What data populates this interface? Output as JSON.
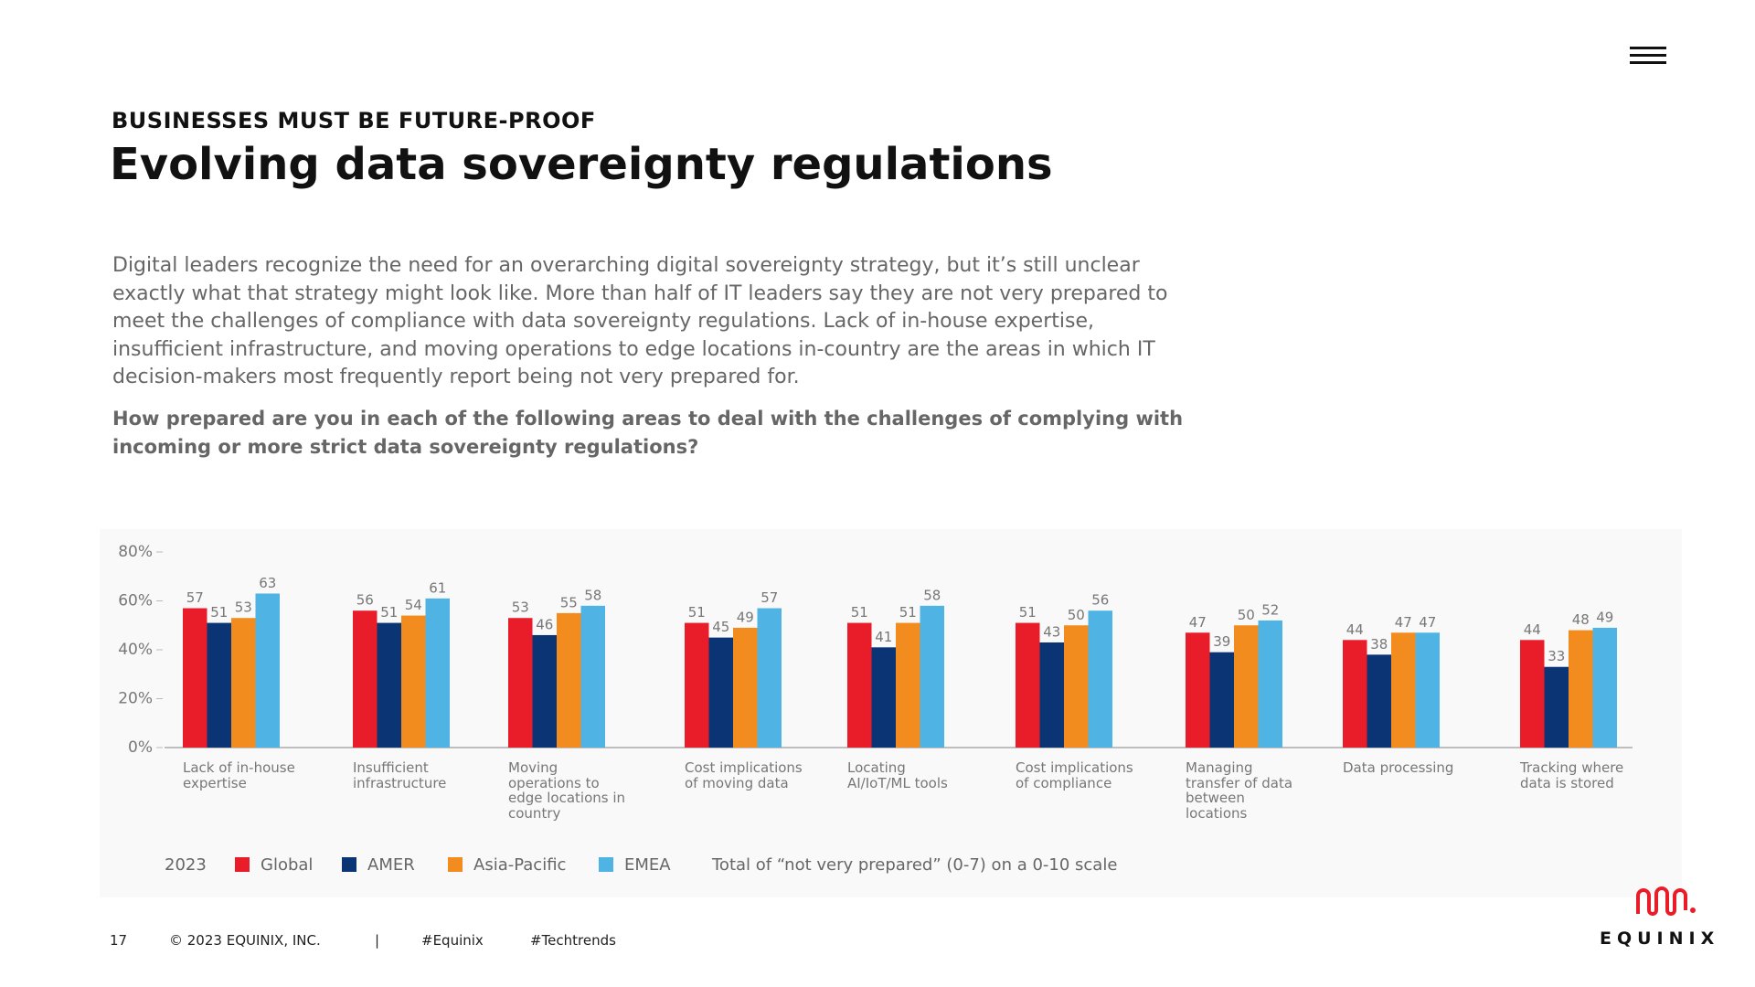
{
  "header": {
    "kicker": "BUSINESSES MUST BE FUTURE-PROOF",
    "title": "Evolving data sovereignty regulations"
  },
  "body": {
    "paragraph": "Digital leaders recognize the need for an overarching digital sovereignty strategy, but it’s still unclear exactly what that strategy might look like. More than half of IT leaders say they are not very prepared to meet the challenges of compliance with data sovereignty regulations. Lack of in-house expertise, insufficient infrastructure, and moving operations to edge locations in-country are the areas in which IT decision-makers most frequently report being not very prepared for.",
    "question": "How prepared are you in each of the following areas to deal with the challenges of complying with incoming or more strict data sovereignty regulations?"
  },
  "chart_data": {
    "type": "bar",
    "categories": [
      "Lack of in-house expertise",
      "Insufficient infrastructure",
      "Moving operations to edge locations in country",
      "Cost implications of moving data",
      "Locating AI/IoT/ML tools",
      "Cost implications of compliance",
      "Managing transfer of data between locations",
      "Data processing",
      "Tracking where data is stored"
    ],
    "series": [
      {
        "name": "Global",
        "color": "#e91d2a",
        "values": [
          57,
          56,
          53,
          51,
          51,
          51,
          47,
          44,
          44
        ]
      },
      {
        "name": "AMER",
        "color": "#0b3474",
        "values": [
          51,
          51,
          46,
          45,
          41,
          43,
          39,
          38,
          33
        ]
      },
      {
        "name": "Asia-Pacific",
        "color": "#f28c1f",
        "values": [
          53,
          54,
          55,
          49,
          51,
          50,
          50,
          47,
          48
        ]
      },
      {
        "name": "EMEA",
        "color": "#4fb3e4",
        "values": [
          63,
          61,
          58,
          57,
          58,
          56,
          52,
          47,
          49
        ]
      }
    ],
    "ylim": [
      0,
      80
    ],
    "yticks": [
      {
        "value": 0,
        "label": "0%"
      },
      {
        "value": 20,
        "label": "20%"
      },
      {
        "value": 40,
        "label": "40%"
      },
      {
        "value": 60,
        "label": "60%"
      },
      {
        "value": 80,
        "label": "80%"
      }
    ],
    "legend_title": "2023",
    "note": "Total of “not very prepared” (0-7) on a 0-10 scale"
  },
  "footer": {
    "page": "17",
    "copyright": "© 2023 EQUINIX, INC.",
    "separator": "|",
    "hashtags": [
      "#Equinix",
      "#Techtrends"
    ]
  },
  "logo": {
    "text": "EQUINIX"
  }
}
